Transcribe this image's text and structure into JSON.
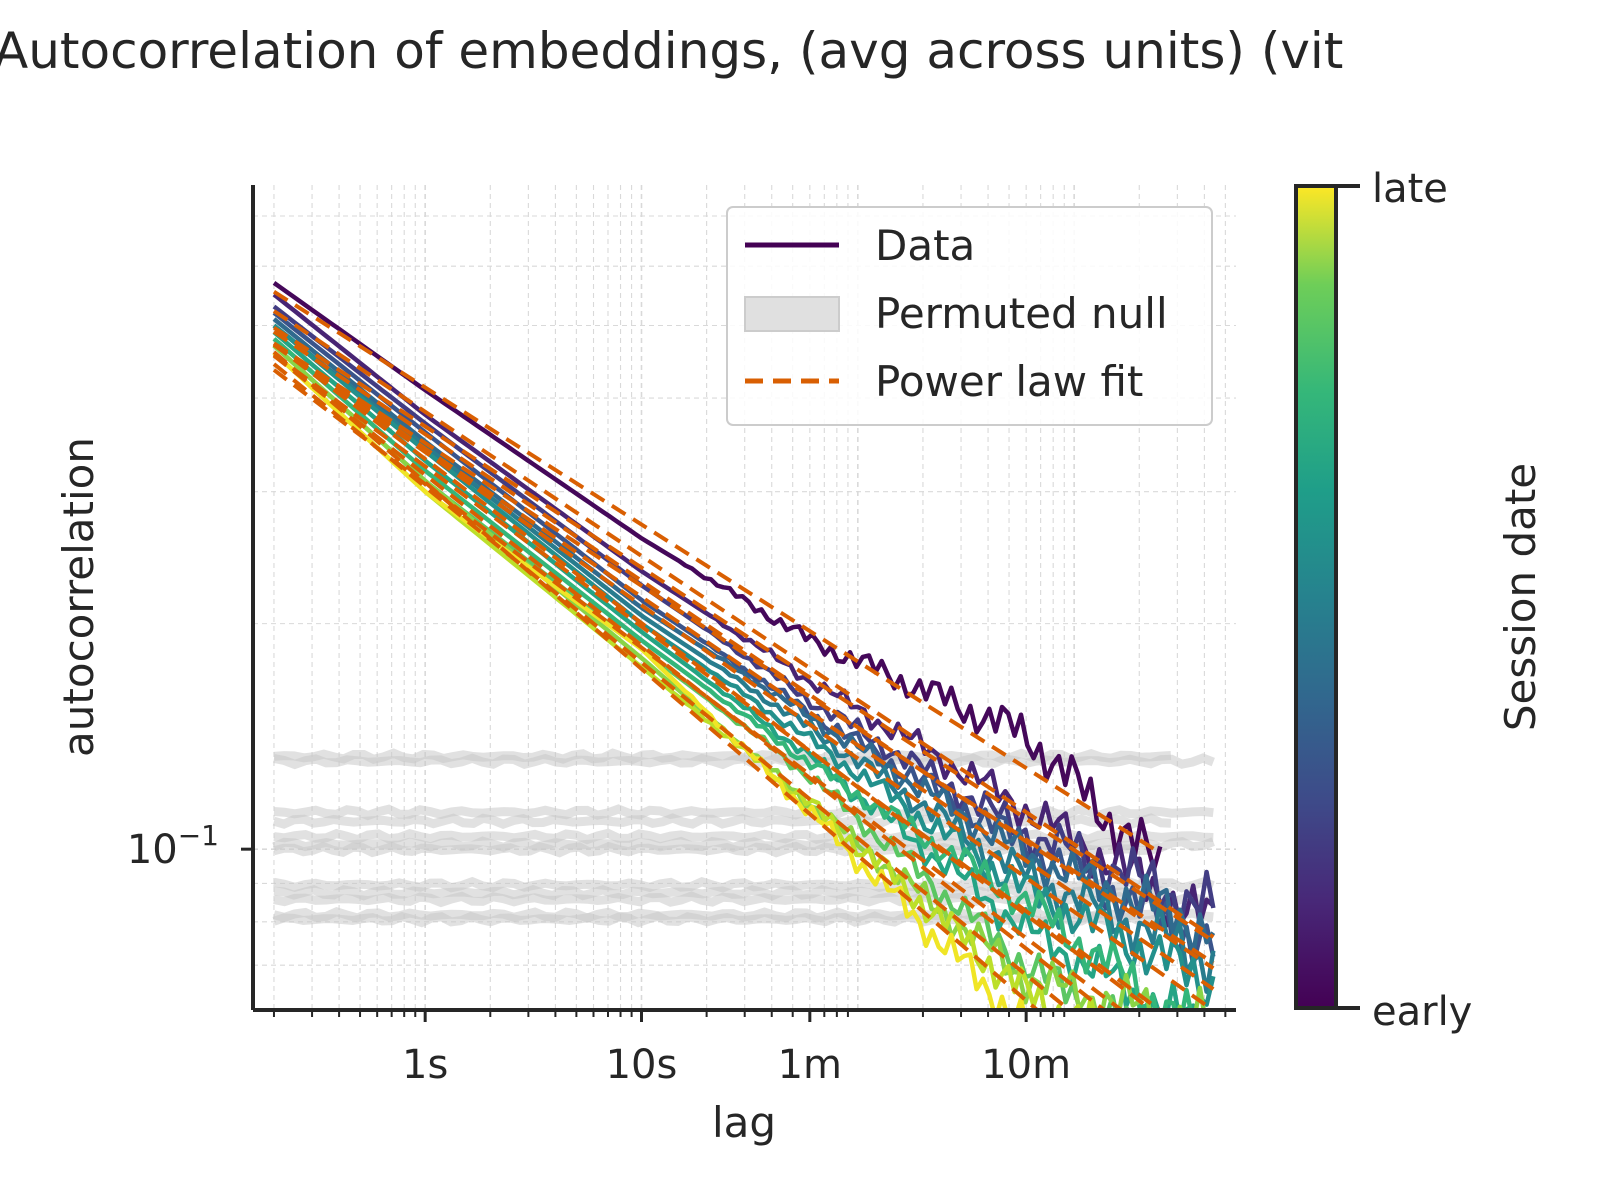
{
  "chart_data": {
    "type": "line",
    "title": "Autocorrelation of embeddings, (avg across units) (vit",
    "xlabel": "lag",
    "ylabel": "autocorrelation",
    "x_scale": "log",
    "y_scale": "log",
    "x_unit": "seconds",
    "xlim_seconds": [
      0.16,
      5600
    ],
    "ylim": [
      0.061,
      0.77
    ],
    "x_ticks": [
      {
        "label": "1s",
        "value": 1
      },
      {
        "label": "10s",
        "value": 10
      },
      {
        "label": "1m",
        "value": 60
      },
      {
        "label": "10m",
        "value": 600
      }
    ],
    "y_ticks": [
      {
        "base": "10",
        "exp": "−1",
        "value": 0.1
      }
    ],
    "grid": true,
    "legend": {
      "placement": "top-right",
      "entries": [
        {
          "label": "Data",
          "style": "line",
          "color": "#440154"
        },
        {
          "label": "Permuted null",
          "style": "band",
          "color": "#d9d9d9"
        },
        {
          "label": "Power law fit",
          "style": "dashed",
          "color": "#d95f02"
        }
      ]
    },
    "colorbar": {
      "label": "Session date",
      "top_label": "late",
      "bottom_label": "early",
      "colormap": "viridis"
    },
    "colors": {
      "fit": "#d95f02",
      "null": "#c8c8c8",
      "axis": "#262626",
      "grid": "#d9d9d9"
    },
    "null_levels": [
      0.133,
      0.131,
      0.112,
      0.109,
      0.104,
      0.1015,
      0.0999,
      0.0896,
      0.0875,
      0.0857,
      0.0817,
      0.0806
    ],
    "series": [
      {
        "session_position": 0.02,
        "x": [
          0.2,
          1,
          10,
          60,
          600,
          2500
        ],
        "y": [
          0.57,
          0.41,
          0.26,
          0.19,
          0.142,
          0.094
        ]
      },
      {
        "session_position": 0.1,
        "x": [
          0.2,
          1,
          10,
          60,
          600,
          4400
        ],
        "y": [
          0.55,
          0.38,
          0.235,
          0.168,
          0.113,
          0.079
        ]
      },
      {
        "session_position": 0.18,
        "x": [
          0.2,
          1,
          10,
          60,
          600,
          4400
        ],
        "y": [
          0.53,
          0.37,
          0.225,
          0.158,
          0.105,
          0.083
        ]
      },
      {
        "session_position": 0.26,
        "x": [
          0.2,
          1,
          10,
          60,
          600,
          4400
        ],
        "y": [
          0.52,
          0.36,
          0.215,
          0.152,
          0.101,
          0.074
        ]
      },
      {
        "session_position": 0.34,
        "x": [
          0.2,
          1,
          10,
          60,
          600,
          4400
        ],
        "y": [
          0.51,
          0.35,
          0.21,
          0.15,
          0.098,
          0.078
        ]
      },
      {
        "session_position": 0.42,
        "x": [
          0.2,
          1,
          10,
          60,
          600,
          4400
        ],
        "y": [
          0.5,
          0.345,
          0.205,
          0.145,
          0.092,
          0.071
        ]
      },
      {
        "session_position": 0.5,
        "x": [
          0.2,
          1,
          10,
          60,
          600,
          4400
        ],
        "y": [
          0.5,
          0.34,
          0.2,
          0.14,
          0.088,
          0.066
        ]
      },
      {
        "session_position": 0.58,
        "x": [
          0.2,
          1,
          10,
          60,
          600,
          4400
        ],
        "y": [
          0.49,
          0.33,
          0.195,
          0.133,
          0.078,
          0.056
        ]
      },
      {
        "session_position": 0.66,
        "x": [
          0.2,
          1,
          10,
          60,
          600,
          4400
        ],
        "y": [
          0.48,
          0.32,
          0.19,
          0.13,
          0.085,
          0.055
        ]
      },
      {
        "session_position": 0.74,
        "x": [
          0.2,
          1,
          10,
          60,
          600,
          4400
        ],
        "y": [
          0.47,
          0.31,
          0.185,
          0.125,
          0.07,
          0.049
        ]
      },
      {
        "session_position": 0.82,
        "x": [
          0.2,
          1,
          10,
          60,
          600,
          4400
        ],
        "y": [
          0.47,
          0.31,
          0.18,
          0.115,
          0.067,
          0.058
        ]
      },
      {
        "session_position": 0.9,
        "x": [
          0.2,
          1,
          10,
          60,
          600,
          2500
        ],
        "y": [
          0.46,
          0.3,
          0.175,
          0.115,
          0.064,
          0.052
        ]
      },
      {
        "session_position": 0.98,
        "x": [
          0.2,
          1,
          10,
          60,
          600,
          2500
        ],
        "y": [
          0.46,
          0.3,
          0.185,
          0.112,
          0.058,
          0.046
        ]
      }
    ]
  }
}
